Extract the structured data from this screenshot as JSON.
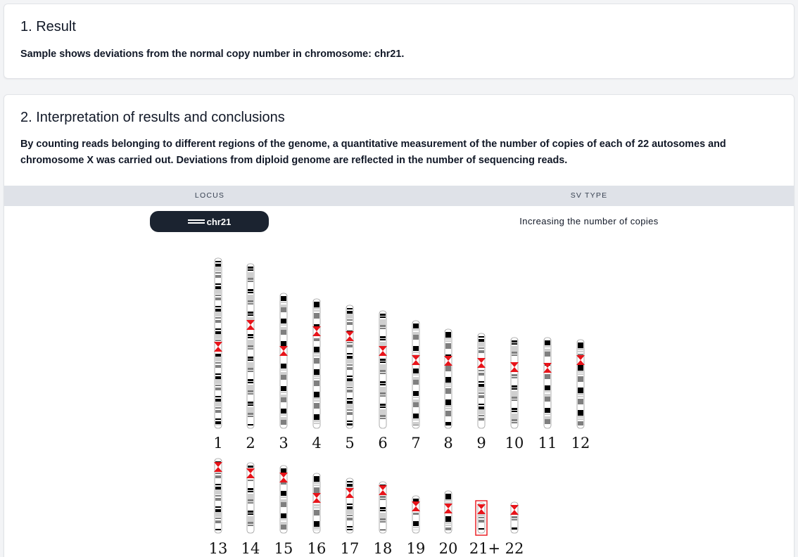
{
  "result_section": {
    "title": "1. Result",
    "text": "Sample shows deviations from the normal copy number in chromosome: chr21."
  },
  "interpretation_section": {
    "title": "2. Interpretation of results and conclusions",
    "text": "By counting reads belonging to different regions of the genome, a quantitative measurement of the number of copies of each of 22 autosomes and chromosome X was carried out. Deviations from diploid genome are reflected in the number of sequencing reads."
  },
  "table": {
    "headers": {
      "locus": "LOCUS",
      "sv_type": "SV TYPE"
    },
    "rows": [
      {
        "locus": "chr21",
        "locus_icon": "chromosome-icon",
        "sv_type": "Increasing the number of copies"
      }
    ]
  },
  "karyogram": {
    "row1_labels": [
      "1",
      "2",
      "3",
      "4",
      "5",
      "6",
      "7",
      "8",
      "9",
      "10",
      "11",
      "12"
    ],
    "row2_labels": [
      "13",
      "14",
      "15",
      "16",
      "17",
      "18",
      "19",
      "20",
      "21+",
      "22"
    ],
    "highlighted": "21+",
    "colors": {
      "centromere": "#e8141a",
      "highlight_box": "#e8141a",
      "band_dark": "#000000",
      "band_mid": "#7f7f7f",
      "band_light": "#cfcfcf"
    }
  }
}
